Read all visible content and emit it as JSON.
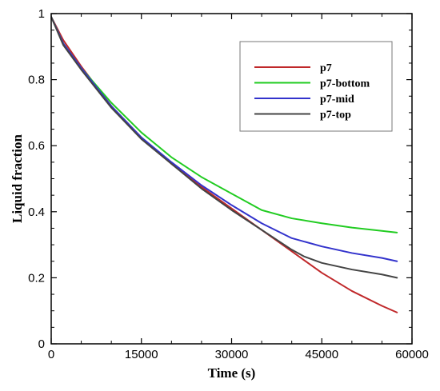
{
  "chart_data": {
    "type": "line",
    "title": "",
    "xlabel": "Time (s)",
    "ylabel": "Liquid fraction",
    "xlim": [
      0,
      60000
    ],
    "ylim": [
      0,
      1
    ],
    "x_ticks": [
      0,
      15000,
      30000,
      45000,
      60000
    ],
    "y_ticks": [
      0,
      0.2,
      0.4,
      0.6,
      0.8,
      1
    ],
    "x_tick_labels": [
      "0",
      "15000",
      "30000",
      "45000",
      "60000"
    ],
    "y_tick_labels": [
      "0",
      "0.2",
      "0.4",
      "0.6",
      "0.8",
      "1"
    ],
    "grid": false,
    "legend": "top-right",
    "series": [
      {
        "name": "p7",
        "color": "#c0282a",
        "points": [
          [
            0,
            0.99
          ],
          [
            2000,
            0.92
          ],
          [
            5000,
            0.84
          ],
          [
            10000,
            0.72
          ],
          [
            15000,
            0.625
          ],
          [
            20000,
            0.545
          ],
          [
            25000,
            0.475
          ],
          [
            30000,
            0.41
          ],
          [
            35000,
            0.345
          ],
          [
            40000,
            0.28
          ],
          [
            45000,
            0.215
          ],
          [
            50000,
            0.16
          ],
          [
            55000,
            0.115
          ],
          [
            57500,
            0.095
          ]
        ]
      },
      {
        "name": "p7-bottom",
        "color": "#22cc22",
        "points": [
          [
            0,
            0.99
          ],
          [
            2000,
            0.91
          ],
          [
            5000,
            0.835
          ],
          [
            10000,
            0.73
          ],
          [
            15000,
            0.64
          ],
          [
            20000,
            0.565
          ],
          [
            25000,
            0.505
          ],
          [
            30000,
            0.455
          ],
          [
            33000,
            0.425
          ],
          [
            35000,
            0.405
          ],
          [
            40000,
            0.38
          ],
          [
            45000,
            0.365
          ],
          [
            50000,
            0.352
          ],
          [
            55000,
            0.342
          ],
          [
            57500,
            0.337
          ]
        ]
      },
      {
        "name": "p7-mid",
        "color": "#3333cc",
        "points": [
          [
            0,
            0.99
          ],
          [
            2000,
            0.91
          ],
          [
            5000,
            0.835
          ],
          [
            10000,
            0.72
          ],
          [
            15000,
            0.625
          ],
          [
            20000,
            0.55
          ],
          [
            25000,
            0.48
          ],
          [
            30000,
            0.42
          ],
          [
            35000,
            0.365
          ],
          [
            40000,
            0.32
          ],
          [
            45000,
            0.295
          ],
          [
            50000,
            0.275
          ],
          [
            55000,
            0.26
          ],
          [
            57500,
            0.25
          ]
        ]
      },
      {
        "name": "p7-top",
        "color": "#444444",
        "points": [
          [
            0,
            0.99
          ],
          [
            2000,
            0.905
          ],
          [
            5000,
            0.83
          ],
          [
            10000,
            0.715
          ],
          [
            15000,
            0.62
          ],
          [
            20000,
            0.545
          ],
          [
            25000,
            0.47
          ],
          [
            30000,
            0.405
          ],
          [
            35000,
            0.345
          ],
          [
            40000,
            0.285
          ],
          [
            42000,
            0.265
          ],
          [
            45000,
            0.245
          ],
          [
            50000,
            0.225
          ],
          [
            55000,
            0.21
          ],
          [
            57500,
            0.2
          ]
        ]
      }
    ]
  }
}
